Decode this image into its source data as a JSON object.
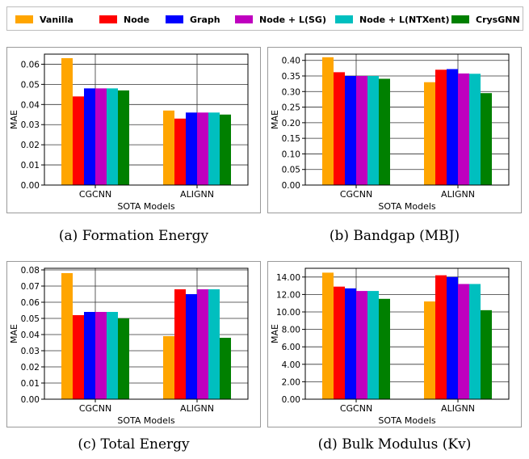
{
  "legend": [
    {
      "name": "Vanilla",
      "color": "#FFA500"
    },
    {
      "name": "Node",
      "color": "#FF0000"
    },
    {
      "name": "Graph",
      "color": "#0000FF"
    },
    {
      "name": "Node + L(SG)",
      "color": "#BF00BF"
    },
    {
      "name": "Node + L(NTXent)",
      "color": "#00BFBF"
    },
    {
      "name": "CrysGNN",
      "color": "#008000"
    }
  ],
  "chart_data": [
    {
      "type": "bar",
      "caption": "(a) Formation Energy",
      "xlabel": "SOTA Models",
      "ylabel": "MAE",
      "categories": [
        "CGCNN",
        "ALIGNN"
      ],
      "ylim": [
        0,
        0.065
      ],
      "yticks": [
        0,
        0.01,
        0.02,
        0.03,
        0.04,
        0.05,
        0.06
      ],
      "ytick_labels": [
        "0.00",
        "0.01",
        "0.02",
        "0.03",
        "0.04",
        "0.05",
        "0.06"
      ],
      "series": [
        {
          "name": "Vanilla",
          "values": [
            0.063,
            0.037
          ]
        },
        {
          "name": "Node",
          "values": [
            0.044,
            0.033
          ]
        },
        {
          "name": "Graph",
          "values": [
            0.048,
            0.036
          ]
        },
        {
          "name": "Node + L(SG)",
          "values": [
            0.048,
            0.036
          ]
        },
        {
          "name": "Node + L(NTXent)",
          "values": [
            0.048,
            0.036
          ]
        },
        {
          "name": "CrysGNN",
          "values": [
            0.047,
            0.035
          ]
        }
      ]
    },
    {
      "type": "bar",
      "caption": "(b) Bandgap (MBJ)",
      "xlabel": "SOTA Models",
      "ylabel": "MAE",
      "categories": [
        "CGCNN",
        "ALIGNN"
      ],
      "ylim": [
        0,
        0.42
      ],
      "yticks": [
        0,
        0.05,
        0.1,
        0.15,
        0.2,
        0.25,
        0.3,
        0.35,
        0.4
      ],
      "ytick_labels": [
        "0.00",
        "0.05",
        "0.10",
        "0.15",
        "0.20",
        "0.25",
        "0.30",
        "0.35",
        "0.40"
      ],
      "series": [
        {
          "name": "Vanilla",
          "values": [
            0.41,
            0.33
          ]
        },
        {
          "name": "Node",
          "values": [
            0.362,
            0.37
          ]
        },
        {
          "name": "Graph",
          "values": [
            0.35,
            0.372
          ]
        },
        {
          "name": "Node + L(SG)",
          "values": [
            0.35,
            0.358
          ]
        },
        {
          "name": "Node + L(NTXent)",
          "values": [
            0.35,
            0.357
          ]
        },
        {
          "name": "CrysGNN",
          "values": [
            0.341,
            0.295
          ]
        }
      ]
    },
    {
      "type": "bar",
      "caption": "(c) Total Energy",
      "xlabel": "SOTA Models",
      "ylabel": "MAE",
      "categories": [
        "CGCNN",
        "ALIGNN"
      ],
      "ylim": [
        0,
        0.081
      ],
      "yticks": [
        0,
        0.01,
        0.02,
        0.03,
        0.04,
        0.05,
        0.06,
        0.07,
        0.08
      ],
      "ytick_labels": [
        "0.00",
        "0.01",
        "0.02",
        "0.03",
        "0.04",
        "0.05",
        "0.06",
        "0.07",
        "0.08"
      ],
      "series": [
        {
          "name": "Vanilla",
          "values": [
            0.078,
            0.039
          ]
        },
        {
          "name": "Node",
          "values": [
            0.052,
            0.068
          ]
        },
        {
          "name": "Graph",
          "values": [
            0.054,
            0.065
          ]
        },
        {
          "name": "Node + L(SG)",
          "values": [
            0.054,
            0.068
          ]
        },
        {
          "name": "Node + L(NTXent)",
          "values": [
            0.054,
            0.068
          ]
        },
        {
          "name": "CrysGNN",
          "values": [
            0.05,
            0.038
          ]
        }
      ]
    },
    {
      "type": "bar",
      "caption": "(d) Bulk Modulus (Kv)",
      "xlabel": "SOTA Models",
      "ylabel": "MAE",
      "categories": [
        "CGCNN",
        "ALIGNN"
      ],
      "ylim": [
        0,
        15
      ],
      "yticks": [
        0,
        2,
        4,
        6,
        8,
        10,
        12,
        14
      ],
      "ytick_labels": [
        "0.00",
        "2.00",
        "4.00",
        "6.00",
        "8.00",
        "10.00",
        "12.00",
        "14.00"
      ],
      "series": [
        {
          "name": "Vanilla",
          "values": [
            14.5,
            11.2
          ]
        },
        {
          "name": "Node",
          "values": [
            12.9,
            14.2
          ]
        },
        {
          "name": "Graph",
          "values": [
            12.7,
            14.0
          ]
        },
        {
          "name": "Node + L(SG)",
          "values": [
            12.4,
            13.2
          ]
        },
        {
          "name": "Node + L(NTXent)",
          "values": [
            12.4,
            13.2
          ]
        },
        {
          "name": "CrysGNN",
          "values": [
            11.5,
            10.2
          ]
        }
      ]
    }
  ]
}
